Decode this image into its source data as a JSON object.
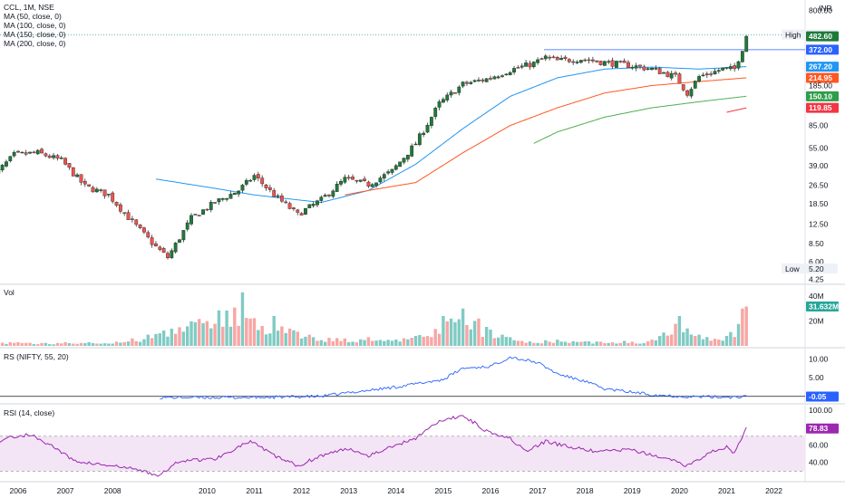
{
  "header": {
    "symbol_line": "CCL, 1M, NSE",
    "ma_lines": [
      "MA (50, close, 0)",
      "MA (100, close, 0)",
      "MA (150, close, 0)",
      "MA (200, close, 0)"
    ],
    "currency": "INR"
  },
  "panes": {
    "vol_title": "Vol",
    "rs_title": "RS (NIFTY, 55, 20)",
    "rsi_title": "RSI (14, close)"
  },
  "colors": {
    "up": "#26a69a",
    "down": "#ef5350",
    "upbody": "#1f7a3a",
    "ma50": "#2196f3",
    "ma100": "#ff5722",
    "ma150": "#4caf50",
    "ma200": "#f23645",
    "rs": "#2962ff",
    "rsi": "#9c27b0",
    "rsi_band": "#f3e5f5"
  },
  "chart_data": {
    "type": "candlestick",
    "price_axis": {
      "scale": "log",
      "ticks": [
        "4.25",
        "6.00",
        "8.50",
        "12.50",
        "18.50",
        "26.50",
        "39.00",
        "55.00",
        "85.00",
        "185.00",
        "800.00"
      ],
      "tick_values": [
        4.25,
        6.0,
        8.5,
        12.5,
        18.5,
        26.5,
        39.0,
        55.0,
        85.0,
        185.0,
        800.0
      ]
    },
    "time_axis": [
      "2006",
      "2007",
      "2008",
      "2010",
      "2011",
      "2012",
      "2013",
      "2014",
      "2015",
      "2016",
      "2017",
      "2018",
      "2019",
      "2020",
      "2021",
      "2022"
    ],
    "high": {
      "label": "High",
      "value": "494.80"
    },
    "low": {
      "label": "Low",
      "value": "5.20"
    },
    "price_tags": [
      {
        "value": "482.60",
        "role": "close",
        "color": "#1f7a3a"
      },
      {
        "value": "372.00",
        "role": "level",
        "color": "#2962ff"
      },
      {
        "value": "267.20",
        "role": "MA (50, close, 0)",
        "color": "#2196f3"
      },
      {
        "value": "214.95",
        "role": "MA (100, close, 0)",
        "color": "#ff5722"
      },
      {
        "value": "150.10",
        "role": "MA (150, close, 0)",
        "color": "#2e9e4a"
      },
      {
        "value": "119.85",
        "role": "MA (200, close, 0)",
        "color": "#f23645"
      }
    ],
    "monthly_close_anchors": [
      [
        "2005-06",
        30
      ],
      [
        "2005-12",
        48
      ],
      [
        "2006-06",
        50
      ],
      [
        "2006-12",
        43
      ],
      [
        "2007-06",
        26
      ],
      [
        "2007-12",
        22
      ],
      [
        "2008-06",
        13
      ],
      [
        "2008-12",
        8
      ],
      [
        "2009-03",
        6.5
      ],
      [
        "2009-09",
        14
      ],
      [
        "2010-03",
        19
      ],
      [
        "2010-09",
        24
      ],
      [
        "2011-01",
        32
      ],
      [
        "2011-06",
        22
      ],
      [
        "2011-12",
        15
      ],
      [
        "2012-06",
        20
      ],
      [
        "2012-12",
        30
      ],
      [
        "2013-06",
        27
      ],
      [
        "2013-12",
        35
      ],
      [
        "2014-06",
        60
      ],
      [
        "2014-12",
        130
      ],
      [
        "2015-06",
        190
      ],
      [
        "2015-12",
        210
      ],
      [
        "2016-06",
        250
      ],
      [
        "2016-12",
        285
      ],
      [
        "2017-03",
        320
      ],
      [
        "2017-06",
        300
      ],
      [
        "2017-12",
        310
      ],
      [
        "2018-06",
        290
      ],
      [
        "2018-12",
        275
      ],
      [
        "2019-06",
        255
      ],
      [
        "2019-12",
        220
      ],
      [
        "2020-03",
        160
      ],
      [
        "2020-06",
        220
      ],
      [
        "2020-12",
        255
      ],
      [
        "2021-03",
        255
      ],
      [
        "2021-05",
        380
      ],
      [
        "2021-06",
        482.6
      ]
    ],
    "moving_averages": [
      {
        "name": "MA (50, close, 0)",
        "points": [
          [
            "2008-12",
            30
          ],
          [
            "2010-03",
            25
          ],
          [
            "2011-01",
            22
          ],
          [
            "2012-06",
            19
          ],
          [
            "2013-06",
            24
          ],
          [
            "2014-06",
            40
          ],
          [
            "2015-06",
            80
          ],
          [
            "2016-06",
            150
          ],
          [
            "2017-06",
            215
          ],
          [
            "2018-06",
            255
          ],
          [
            "2019-06",
            265
          ],
          [
            "2020-06",
            255
          ],
          [
            "2021-06",
            267.2
          ]
        ]
      },
      {
        "name": "MA (100, close, 0)",
        "points": [
          [
            "2012-12",
            22
          ],
          [
            "2013-06",
            24
          ],
          [
            "2014-06",
            28
          ],
          [
            "2015-06",
            50
          ],
          [
            "2016-06",
            85
          ],
          [
            "2017-06",
            120
          ],
          [
            "2018-06",
            160
          ],
          [
            "2019-06",
            185
          ],
          [
            "2020-06",
            200
          ],
          [
            "2021-06",
            214.95
          ]
        ]
      },
      {
        "name": "MA (150, close, 0)",
        "points": [
          [
            "2016-12",
            60
          ],
          [
            "2017-06",
            75
          ],
          [
            "2018-06",
            100
          ],
          [
            "2019-06",
            120
          ],
          [
            "2020-06",
            135
          ],
          [
            "2021-06",
            150.1
          ]
        ]
      },
      {
        "name": "MA (200, close, 0)",
        "points": [
          [
            "2021-01",
            110
          ],
          [
            "2021-06",
            119.85
          ]
        ]
      }
    ],
    "volume": {
      "ticks": [
        "20M",
        "40M"
      ],
      "last": "31.632M",
      "series": [
        [
          "2005-07",
          5
        ],
        [
          "2006-01",
          3
        ],
        [
          "2007-01",
          3
        ],
        [
          "2008-06",
          6
        ],
        [
          "2008-10",
          9
        ],
        [
          "2010-10",
          43
        ],
        [
          "2011-03",
          16
        ],
        [
          "2011-06",
          24
        ],
        [
          "2012-03",
          9
        ],
        [
          "2013-06",
          7
        ],
        [
          "2014-06",
          8
        ],
        [
          "2015-01",
          24
        ],
        [
          "2015-06",
          30
        ],
        [
          "2015-10",
          22
        ],
        [
          "2016-06",
          7
        ],
        [
          "2017-06",
          5
        ],
        [
          "2019-06",
          5
        ],
        [
          "2020-01",
          24
        ],
        [
          "2020-03",
          14
        ],
        [
          "2020-06",
          9
        ],
        [
          "2021-01",
          8
        ],
        [
          "2021-05",
          30
        ],
        [
          "2021-06",
          31.632
        ]
      ]
    },
    "rs": {
      "ticks": [
        "5.00",
        "10.00"
      ],
      "last": "-0.05",
      "series": [
        [
          "2009-01",
          -0.3
        ],
        [
          "2011-01",
          -0.3
        ],
        [
          "2012-06",
          0
        ],
        [
          "2013-01",
          1
        ],
        [
          "2014-01",
          2.5
        ],
        [
          "2015-01",
          4.5
        ],
        [
          "2015-06",
          7.5
        ],
        [
          "2016-01",
          8
        ],
        [
          "2016-06",
          10.5
        ],
        [
          "2017-01",
          9
        ],
        [
          "2017-06",
          6
        ],
        [
          "2018-01",
          4
        ],
        [
          "2018-06",
          2
        ],
        [
          "2019-06",
          0.5
        ],
        [
          "2020-01",
          0
        ],
        [
          "2021-01",
          -0.2
        ],
        [
          "2021-06",
          -0.05
        ]
      ]
    },
    "rsi": {
      "ticks": [
        "40.00",
        "60.00",
        "100.00"
      ],
      "band": [
        30,
        70
      ],
      "last": "78.83",
      "series": [
        [
          "2005-06",
          60
        ],
        [
          "2005-10",
          68
        ],
        [
          "2006-04",
          72
        ],
        [
          "2006-10",
          58
        ],
        [
          "2007-03",
          42
        ],
        [
          "2007-09",
          38
        ],
        [
          "2008-06",
          33
        ],
        [
          "2009-01",
          25
        ],
        [
          "2009-06",
          42
        ],
        [
          "2010-03",
          44
        ],
        [
          "2010-09",
          58
        ],
        [
          "2010-12",
          64
        ],
        [
          "2011-06",
          48
        ],
        [
          "2011-12",
          36
        ],
        [
          "2012-06",
          48
        ],
        [
          "2013-01",
          56
        ],
        [
          "2013-06",
          48
        ],
        [
          "2014-06",
          68
        ],
        [
          "2014-10",
          82
        ],
        [
          "2015-01",
          88
        ],
        [
          "2015-06",
          94
        ],
        [
          "2015-12",
          76
        ],
        [
          "2016-06",
          68
        ],
        [
          "2016-10",
          52
        ],
        [
          "2017-03",
          64
        ],
        [
          "2017-09",
          58
        ],
        [
          "2018-04",
          52
        ],
        [
          "2018-12",
          55
        ],
        [
          "2019-06",
          48
        ],
        [
          "2019-12",
          42
        ],
        [
          "2020-03",
          36
        ],
        [
          "2020-09",
          52
        ],
        [
          "2021-01",
          58
        ],
        [
          "2021-03",
          50
        ],
        [
          "2021-06",
          78.83
        ]
      ]
    }
  }
}
